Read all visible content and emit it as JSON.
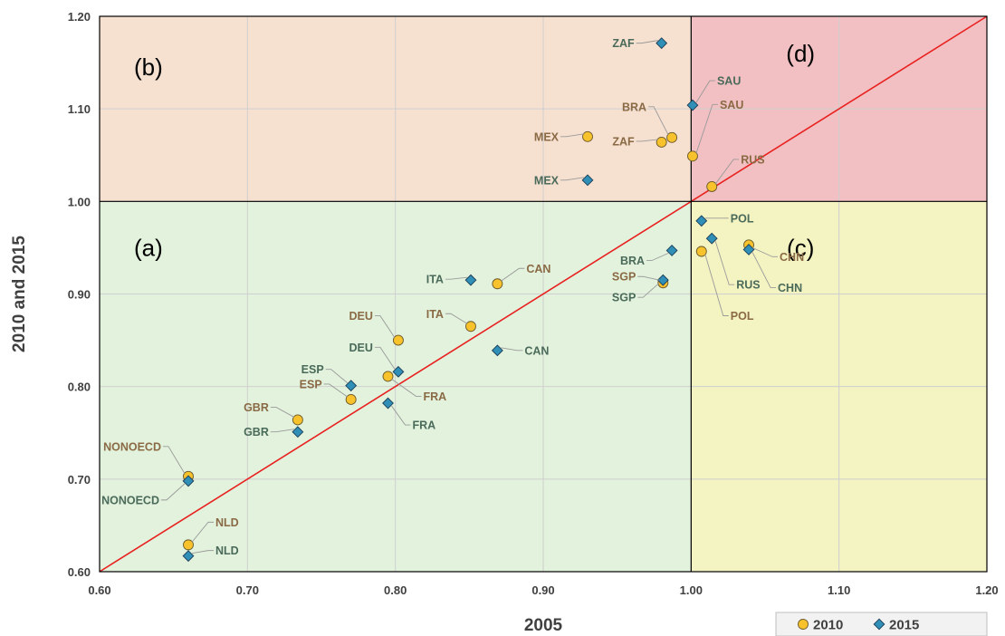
{
  "chart_data": {
    "type": "scatter",
    "xlabel": "2005",
    "ylabel": "2010 and 2015",
    "xlim": [
      0.6,
      1.2
    ],
    "ylim": [
      0.6,
      1.2
    ],
    "xticks": [
      "0.60",
      "0.70",
      "0.80",
      "0.90",
      "1.00",
      "1.10",
      "1.20"
    ],
    "yticks": [
      "0.60",
      "0.70",
      "0.80",
      "0.90",
      "1.00",
      "1.10",
      "1.20"
    ],
    "grid": true,
    "legend_position": "bottom-right",
    "reference_line": "y = x",
    "quadrants": [
      {
        "label": "(a)",
        "fill": "#e2f2dc"
      },
      {
        "label": "(b)",
        "fill": "#f6e0d0"
      },
      {
        "label": "(c)",
        "fill": "#f4f3c2"
      },
      {
        "label": "(d)",
        "fill": "#f2c0c2"
      }
    ],
    "colors": {
      "line": "#e8201f",
      "series_2010": "#f8c22c",
      "series_2015": "#2f8fb6",
      "label_2010": "#8a6a45",
      "label_2015": "#4a6a5a"
    },
    "series": [
      {
        "name": "2010",
        "marker": "circle",
        "points": [
          {
            "label": "NLD",
            "x": 0.66,
            "y": 0.629
          },
          {
            "label": "NONOECD",
            "x": 0.66,
            "y": 0.703
          },
          {
            "label": "GBR",
            "x": 0.734,
            "y": 0.764
          },
          {
            "label": "ESP",
            "x": 0.77,
            "y": 0.786
          },
          {
            "label": "FRA",
            "x": 0.795,
            "y": 0.811
          },
          {
            "label": "DEU",
            "x": 0.802,
            "y": 0.85
          },
          {
            "label": "ITA",
            "x": 0.851,
            "y": 0.865
          },
          {
            "label": "CAN",
            "x": 0.869,
            "y": 0.911
          },
          {
            "label": "SGP",
            "x": 0.981,
            "y": 0.912
          },
          {
            "label": "POL",
            "x": 1.007,
            "y": 0.946
          },
          {
            "label": "CHN",
            "x": 1.039,
            "y": 0.953
          },
          {
            "label": "RUS",
            "x": 1.014,
            "y": 1.016
          },
          {
            "label": "SAU",
            "x": 1.001,
            "y": 1.049
          },
          {
            "label": "ZAF",
            "x": 0.98,
            "y": 1.064
          },
          {
            "label": "BRA",
            "x": 0.987,
            "y": 1.069
          },
          {
            "label": "MEX",
            "x": 0.93,
            "y": 1.07
          }
        ]
      },
      {
        "name": "2015",
        "marker": "diamond",
        "points": [
          {
            "label": "NLD",
            "x": 0.66,
            "y": 0.617
          },
          {
            "label": "NONOECD",
            "x": 0.66,
            "y": 0.698
          },
          {
            "label": "GBR",
            "x": 0.734,
            "y": 0.751
          },
          {
            "label": "ESP",
            "x": 0.77,
            "y": 0.801
          },
          {
            "label": "FRA",
            "x": 0.795,
            "y": 0.782
          },
          {
            "label": "DEU",
            "x": 0.802,
            "y": 0.816
          },
          {
            "label": "ITA",
            "x": 0.851,
            "y": 0.915
          },
          {
            "label": "CAN",
            "x": 0.869,
            "y": 0.839
          },
          {
            "label": "SGP",
            "x": 0.981,
            "y": 0.915
          },
          {
            "label": "BRA",
            "x": 0.987,
            "y": 0.947
          },
          {
            "label": "POL",
            "x": 1.007,
            "y": 0.979
          },
          {
            "label": "RUS",
            "x": 1.014,
            "y": 0.96
          },
          {
            "label": "CHN",
            "x": 1.039,
            "y": 0.948
          },
          {
            "label": "SAU",
            "x": 1.001,
            "y": 1.104
          },
          {
            "label": "MEX",
            "x": 0.93,
            "y": 1.023
          },
          {
            "label": "ZAF",
            "x": 0.98,
            "y": 1.171
          }
        ]
      }
    ]
  }
}
